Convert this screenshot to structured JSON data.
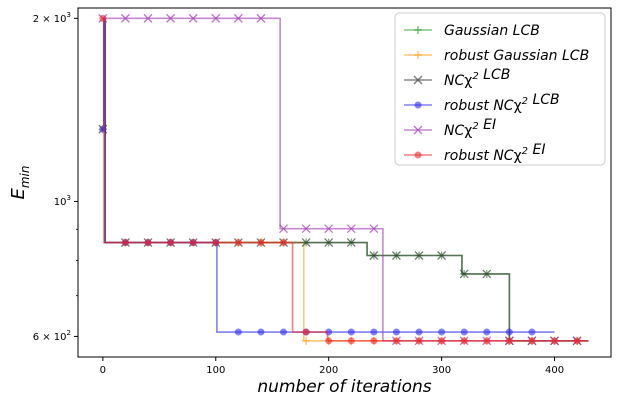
{
  "chart_data": {
    "type": "line",
    "xlabel": "number of iterations",
    "ylabel_main": "E",
    "ylabel_sub": "min",
    "yscale": "log",
    "xlim": [
      -22,
      450
    ],
    "ylim": [
      555,
      2080
    ],
    "x_ticks": [
      0,
      100,
      200,
      300,
      400
    ],
    "x_tick_labels": [
      "0",
      "100",
      "200",
      "300",
      "400"
    ],
    "y_ticks": [
      {
        "value": 2000,
        "label_base": "2 × 10",
        "label_exp": "3"
      },
      {
        "value": 1000,
        "label_base": "10",
        "label_exp": "3"
      },
      {
        "value": 600,
        "label_base": "6 × 10",
        "label_exp": "2"
      }
    ],
    "y_minor_ticks": [
      700,
      800,
      900
    ],
    "legend_position": "top-right",
    "series": [
      {
        "name_parts": [
          {
            "t": "Gaussian LCB"
          }
        ],
        "color": "#2ca02c",
        "marker": "plus",
        "steps": [
          [
            0,
            1315
          ],
          [
            1,
            2000
          ],
          [
            2,
            856
          ],
          [
            225,
            856
          ],
          [
            234,
            815
          ],
          [
            310,
            815
          ],
          [
            318,
            760
          ],
          [
            358,
            760
          ],
          [
            360,
            590
          ],
          [
            430,
            590
          ]
        ],
        "markers": [
          0,
          20,
          40,
          60,
          80,
          100,
          120,
          140,
          160,
          180,
          200,
          220,
          240,
          260,
          280,
          300,
          320,
          340,
          360,
          380,
          400,
          420
        ]
      },
      {
        "name_parts": [
          {
            "t": "robust Gaussian LCB"
          }
        ],
        "color": "#ff9f1c",
        "marker": "plus",
        "steps": [
          [
            0,
            1315
          ],
          [
            1,
            2000
          ],
          [
            2,
            856
          ],
          [
            176,
            856
          ],
          [
            178,
            590
          ],
          [
            430,
            590
          ]
        ],
        "markers": [
          0,
          20,
          40,
          60,
          80,
          100,
          120,
          140,
          160,
          180,
          200,
          220,
          240,
          260,
          280,
          300,
          320,
          340,
          360,
          380,
          400,
          420
        ]
      },
      {
        "name_parts": [
          {
            "t": "NC"
          },
          {
            "t": "χ",
            "upright": true
          },
          {
            "t": "2",
            "sup": true
          },
          {
            "t": " LCB"
          }
        ],
        "color": "#3c3c3c",
        "marker": "x",
        "steps": [
          [
            0,
            1315
          ],
          [
            1,
            2000
          ],
          [
            2,
            856
          ],
          [
            225,
            856
          ],
          [
            234,
            815
          ],
          [
            310,
            815
          ],
          [
            318,
            760
          ],
          [
            358,
            760
          ],
          [
            360,
            590
          ],
          [
            430,
            590
          ]
        ],
        "markers": [
          0,
          20,
          40,
          60,
          80,
          100,
          120,
          140,
          160,
          180,
          200,
          220,
          240,
          260,
          280,
          300,
          320,
          340,
          360,
          380,
          400,
          420
        ]
      },
      {
        "name_parts": [
          {
            "t": "robust NC"
          },
          {
            "t": "χ",
            "upright": true
          },
          {
            "t": "2",
            "sup": true
          },
          {
            "t": " LCB"
          }
        ],
        "color": "#2b2bf0",
        "marker": "circle",
        "steps": [
          [
            0,
            1315
          ],
          [
            1,
            2000
          ],
          [
            2,
            856
          ],
          [
            99,
            856
          ],
          [
            101,
            610
          ],
          [
            400,
            610
          ]
        ],
        "markers": [
          0,
          20,
          40,
          60,
          80,
          100,
          120,
          140,
          160,
          180,
          200,
          220,
          240,
          260,
          280,
          300,
          320,
          340,
          360,
          380
        ]
      },
      {
        "name_parts": [
          {
            "t": "NC"
          },
          {
            "t": "χ",
            "upright": true
          },
          {
            "t": "2",
            "sup": true
          },
          {
            "t": " EI"
          }
        ],
        "color": "#a03cb0",
        "marker": "x",
        "steps": [
          [
            0,
            2000
          ],
          [
            155,
            2000
          ],
          [
            157,
            902
          ],
          [
            245,
            902
          ],
          [
            248,
            590
          ],
          [
            430,
            590
          ]
        ],
        "markers": [
          0,
          20,
          40,
          60,
          80,
          100,
          120,
          140,
          160,
          180,
          200,
          220,
          240,
          260,
          280,
          300,
          320,
          340,
          360,
          380,
          400,
          420
        ]
      },
      {
        "name_parts": [
          {
            "t": "robust NC"
          },
          {
            "t": "χ",
            "upright": true
          },
          {
            "t": "2",
            "sup": true
          },
          {
            "t": " EI"
          }
        ],
        "color": "#f0282a",
        "marker": "circle",
        "steps": [
          [
            0,
            2000
          ],
          [
            1,
            856
          ],
          [
            166,
            856
          ],
          [
            168,
            610
          ],
          [
            196,
            610
          ],
          [
            199,
            590
          ],
          [
            430,
            590
          ]
        ],
        "markers": [
          0,
          20,
          40,
          60,
          80,
          100,
          120,
          140,
          160,
          180,
          200,
          220,
          240,
          260,
          280,
          300,
          320,
          340,
          360,
          380,
          400,
          420
        ]
      }
    ]
  }
}
